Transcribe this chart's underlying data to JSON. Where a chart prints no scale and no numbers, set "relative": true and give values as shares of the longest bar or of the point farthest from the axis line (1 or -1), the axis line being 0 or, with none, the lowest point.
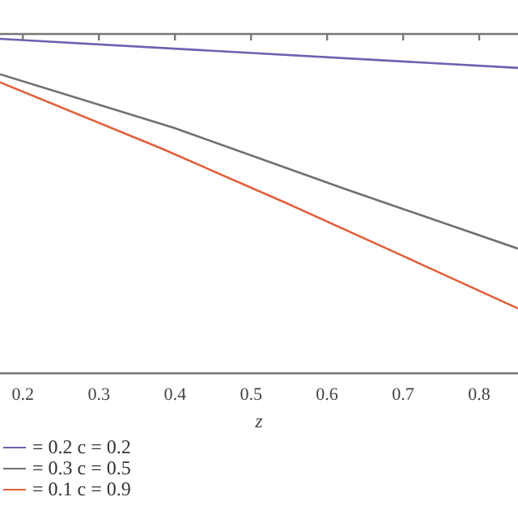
{
  "chart_data": {
    "type": "line",
    "relative": true,
    "xlabel": "z",
    "xlim": [
      0.17,
      0.851
    ],
    "xticks": [
      0.2,
      0.3,
      0.4,
      0.5,
      0.6,
      0.7,
      0.8
    ],
    "grid": false,
    "legend": "bottom left",
    "marker": "none",
    "line_style": "solid",
    "series": [
      {
        "name": "= 0.2 c = 0.2",
        "color": "#6a62b0",
        "x": [
          0.17,
          0.851
        ],
        "values": [
          1.0,
          0.913
        ]
      },
      {
        "name": "= 0.3 c = 0.5",
        "color": "#707070",
        "x": [
          0.17,
          0.398,
          0.623,
          0.851
        ],
        "values": [
          0.894,
          0.734,
          0.551,
          0.372
        ]
      },
      {
        "name": "= 0.1 c = 0.9",
        "color": "#e0603a",
        "x": [
          0.17,
          0.383,
          0.543,
          0.702,
          0.851
        ],
        "values": [
          0.87,
          0.671,
          0.512,
          0.348,
          0.193
        ]
      }
    ]
  }
}
